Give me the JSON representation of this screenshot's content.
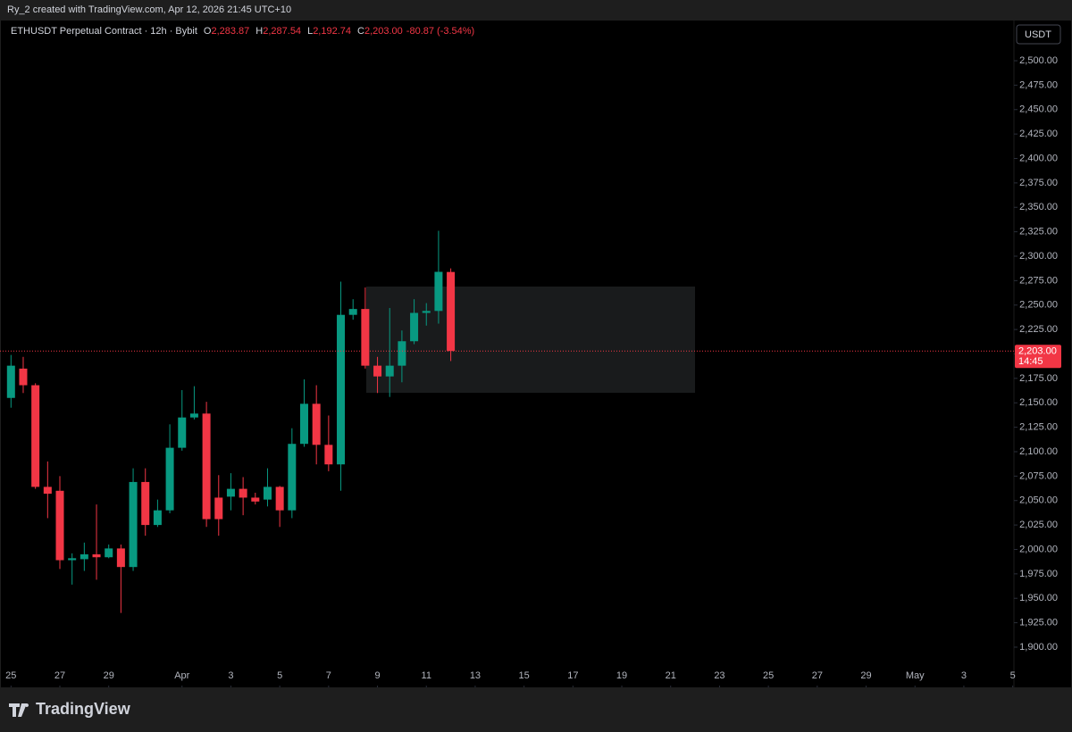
{
  "header": {
    "credit": "Ry_2 created with TradingView.com, Apr 12, 2026 21:45 UTC+10"
  },
  "chart_data": {
    "type": "candlestick",
    "symbol": "ETHUSDT Perpetual Contract · 12h · Bybit",
    "legend_values": [
      {
        "key": "O",
        "label": "2,283.87"
      },
      {
        "key": "H",
        "label": "2,287.54"
      },
      {
        "key": "L",
        "label": "2,192.74"
      },
      {
        "key": "C",
        "label": "2,203.00"
      }
    ],
    "change_label": "-80.87 (-3.54%)",
    "currency": "USDT",
    "countdown": "14:45",
    "up_color": "#089981",
    "down_color": "#f23645",
    "grid": false,
    "x": [
      0,
      0.5,
      1,
      1.5,
      2,
      2.5,
      3,
      3.5,
      4,
      4.5,
      5,
      5.5,
      6,
      6.5,
      7,
      7.5,
      8,
      8.5,
      9,
      9.5,
      10,
      10.5,
      11,
      11.5,
      12,
      12.5,
      13,
      13.5,
      14,
      14.5,
      15,
      15.5,
      16,
      16.5,
      17,
      17.5,
      18
    ],
    "open": [
      2155,
      2185,
      2168,
      2064,
      2060,
      1989,
      1990,
      1995,
      1992,
      2001,
      1982,
      2069,
      2025,
      2040,
      2104,
      2135,
      2139,
      2053,
      2054,
      2062,
      2053,
      2051,
      2064,
      2040,
      2108,
      2149,
      2107,
      2087,
      2240,
      2246,
      2188,
      2177,
      2188,
      2213,
      2242,
      2244,
      2283.87
    ],
    "high": [
      2199,
      2197,
      2170,
      2090,
      2075,
      1996,
      2007,
      2046,
      2005,
      2005,
      2083,
      2083,
      2051,
      2128,
      2163,
      2167,
      2151,
      2076,
      2078,
      2074,
      2058,
      2083,
      2065,
      2124,
      2174,
      2168,
      2137,
      2274,
      2256,
      2268,
      2197,
      2247,
      2224,
      2256,
      2252,
      2326,
      2287.54
    ],
    "low": [
      2145,
      2160,
      2062,
      2032,
      1980,
      1964,
      1978,
      1969,
      1991,
      1935,
      1978,
      2014,
      2023,
      2037,
      2101,
      2133,
      2023,
      2014,
      2040,
      2035,
      2046,
      2044,
      2023,
      2032,
      2105,
      2087,
      2080,
      2060,
      2235,
      2185,
      2160,
      2156,
      2171,
      2210,
      2229,
      2231,
      2192.74
    ],
    "close": [
      2188,
      2168,
      2064,
      2057,
      1989,
      1991,
      1995,
      1992,
      2001,
      1982,
      2069,
      2025,
      2040,
      2104,
      2135,
      2139,
      2031,
      2031,
      2062,
      2053,
      2049,
      2064,
      2040,
      2108,
      2149,
      2107,
      2087,
      2240,
      2246,
      2188,
      2177,
      2188,
      2213,
      2242,
      2244,
      2284,
      2203.0
    ],
    "xlim": [
      -0.45,
      41.05
    ],
    "xticks": [
      {
        "value": 0,
        "label": "25"
      },
      {
        "value": 2,
        "label": "27"
      },
      {
        "value": 4,
        "label": "29"
      },
      {
        "value": 7,
        "label": "Apr"
      },
      {
        "value": 9,
        "label": "3"
      },
      {
        "value": 11,
        "label": "5"
      },
      {
        "value": 13,
        "label": "7"
      },
      {
        "value": 15,
        "label": "9"
      },
      {
        "value": 17,
        "label": "11"
      },
      {
        "value": 19,
        "label": "13"
      },
      {
        "value": 21,
        "label": "15"
      },
      {
        "value": 23,
        "label": "17"
      },
      {
        "value": 25,
        "label": "19"
      },
      {
        "value": 27,
        "label": "21"
      },
      {
        "value": 29,
        "label": "23"
      },
      {
        "value": 31,
        "label": "25"
      },
      {
        "value": 33,
        "label": "27"
      },
      {
        "value": 35,
        "label": "29"
      },
      {
        "value": 37,
        "label": "May"
      },
      {
        "value": 39,
        "label": "3"
      },
      {
        "value": 41,
        "label": "5"
      }
    ],
    "ylim": [
      1860.7,
      2540.2
    ],
    "yticks": [
      {
        "value": 1900,
        "label": "1,900.00"
      },
      {
        "value": 1925,
        "label": "1,925.00"
      },
      {
        "value": 1950,
        "label": "1,950.00"
      },
      {
        "value": 1975,
        "label": "1,975.00"
      },
      {
        "value": 2000,
        "label": "2,000.00"
      },
      {
        "value": 2025,
        "label": "2,025.00"
      },
      {
        "value": 2050,
        "label": "2,050.00"
      },
      {
        "value": 2075,
        "label": "2,075.00"
      },
      {
        "value": 2100,
        "label": "2,100.00"
      },
      {
        "value": 2125,
        "label": "2,125.00"
      },
      {
        "value": 2150,
        "label": "2,150.00"
      },
      {
        "value": 2175,
        "label": "2,175.00"
      },
      {
        "value": 2200,
        "label": "2,200.00"
      },
      {
        "value": 2225,
        "label": "2,225.00"
      },
      {
        "value": 2250,
        "label": "2,250.00"
      },
      {
        "value": 2275,
        "label": "2,275.00"
      },
      {
        "value": 2300,
        "label": "2,300.00"
      },
      {
        "value": 2325,
        "label": "2,325.00"
      },
      {
        "value": 2350,
        "label": "2,350.00"
      },
      {
        "value": 2375,
        "label": "2,375.00"
      },
      {
        "value": 2400,
        "label": "2,400.00"
      },
      {
        "value": 2425,
        "label": "2,425.00"
      },
      {
        "value": 2450,
        "label": "2,450.00"
      },
      {
        "value": 2475,
        "label": "2,475.00"
      },
      {
        "value": 2500,
        "label": "2,500.00"
      }
    ]
  },
  "footer": {
    "brand": "TradingView"
  }
}
